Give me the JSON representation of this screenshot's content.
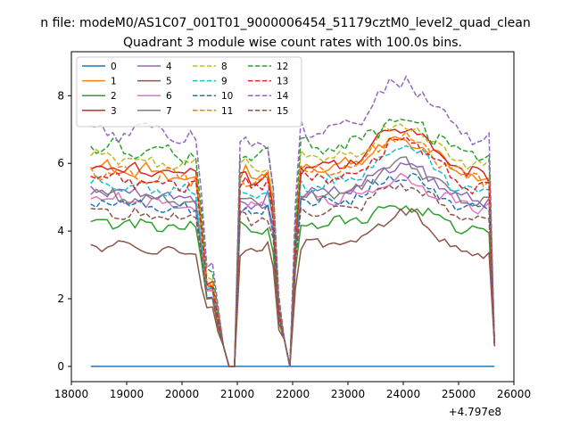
{
  "suptitle": "n file: modeM0/AS1C07_001T01_9000006454_51179cztM0_level2_quad_clean",
  "chart_data": {
    "type": "line",
    "title": "Quadrant 3 module wise count rates with 100.0s bins.",
    "xlabel": "",
    "ylabel": "",
    "x_offset_label": "+4.797e8",
    "xlim": [
      18000,
      26000
    ],
    "ylim": [
      -0.45,
      9.3
    ],
    "x_ticks": [
      18000,
      19000,
      20000,
      21000,
      22000,
      23000,
      24000,
      25000,
      26000
    ],
    "y_ticks": [
      0,
      2,
      4,
      6,
      8
    ],
    "legend_position": "upper-left",
    "grid": false,
    "series": [
      {
        "name": "0",
        "color": "#1f77b4",
        "dash": false,
        "level": 0,
        "amp": 0,
        "drop": 0,
        "noise": 0
      },
      {
        "name": "1",
        "color": "#ff7f0e",
        "dash": false,
        "level": 5.9,
        "amp": 1.0,
        "drop": 2.3,
        "noise": 0.18
      },
      {
        "name": "2",
        "color": "#2ca02c",
        "dash": false,
        "level": 4.3,
        "amp": 0.6,
        "drop": 2.0,
        "noise": 0.14
      },
      {
        "name": "3",
        "color": "#d62728",
        "dash": false,
        "level": 5.9,
        "amp": 1.4,
        "drop": 2.5,
        "noise": 0.16
      },
      {
        "name": "4",
        "color": "#9467bd",
        "dash": false,
        "level": 5.2,
        "amp": 0.9,
        "drop": 2.2,
        "noise": 0.16
      },
      {
        "name": "5",
        "color": "#8c564b",
        "dash": false,
        "level": 3.6,
        "amp": 1.1,
        "drop": 1.7,
        "noise": 0.14
      },
      {
        "name": "6",
        "color": "#e377c2",
        "dash": false,
        "level": 5.0,
        "amp": 0.7,
        "drop": 2.2,
        "noise": 0.15
      },
      {
        "name": "7",
        "color": "#7f7f7f",
        "dash": false,
        "level": 5.1,
        "amp": 1.1,
        "drop": 2.3,
        "noise": 0.16
      },
      {
        "name": "8",
        "color": "#bcbd22",
        "dash": true,
        "level": 6.2,
        "amp": 1.1,
        "drop": 2.6,
        "noise": 0.16
      },
      {
        "name": "9",
        "color": "#17becf",
        "dash": true,
        "level": 5.4,
        "amp": 1.3,
        "drop": 2.4,
        "noise": 0.18
      },
      {
        "name": "10",
        "color": "#1f77b4",
        "dash": true,
        "level": 4.9,
        "amp": 0.9,
        "drop": 2.1,
        "noise": 0.16
      },
      {
        "name": "11",
        "color": "#ff7f0e",
        "dash": true,
        "level": 5.8,
        "amp": 1.2,
        "drop": 2.4,
        "noise": 0.18
      },
      {
        "name": "12",
        "color": "#2ca02c",
        "dash": true,
        "level": 6.5,
        "amp": 1.0,
        "drop": 2.8,
        "noise": 0.2
      },
      {
        "name": "13",
        "color": "#d62728",
        "dash": true,
        "level": 5.6,
        "amp": 1.3,
        "drop": 2.4,
        "noise": 0.18
      },
      {
        "name": "14",
        "color": "#9467bd",
        "dash": true,
        "level": 7.0,
        "amp": 1.6,
        "drop": 3.0,
        "noise": 0.24
      },
      {
        "name": "15",
        "color": "#8c564b",
        "dash": true,
        "level": 4.6,
        "amp": 0.9,
        "drop": 2.0,
        "noise": 0.15
      }
    ]
  }
}
